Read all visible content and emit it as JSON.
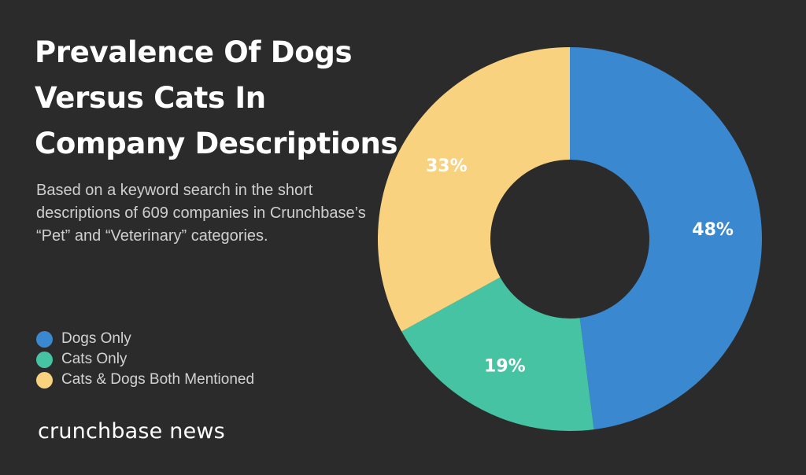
{
  "header": {
    "title_lines": [
      "Prevalence Of Dogs",
      "Versus Cats In",
      "Company Descriptions"
    ],
    "subtitle": "Based on a keyword search in the short descriptions of 609 companies in Crunchbase’s “Pet” and “Veterinary” categories."
  },
  "brand": {
    "name": "crunchbase news"
  },
  "colors": {
    "background": "#2b2b2b",
    "dogs": "#3a88d0",
    "cats": "#45c3a3",
    "both": "#f8d27f"
  },
  "chart_data": {
    "type": "pie",
    "title": "Prevalence Of Dogs Versus Cats In Company Descriptions",
    "donut": true,
    "legend": "left",
    "categories": [
      "Dogs Only",
      "Cats Only",
      "Cats & Dogs Both Mentioned"
    ],
    "values": [
      48,
      19,
      33
    ],
    "labels": [
      "48%",
      "19%",
      "33%"
    ],
    "colors": [
      "#3a88d0",
      "#45c3a3",
      "#f8d27f"
    ]
  }
}
